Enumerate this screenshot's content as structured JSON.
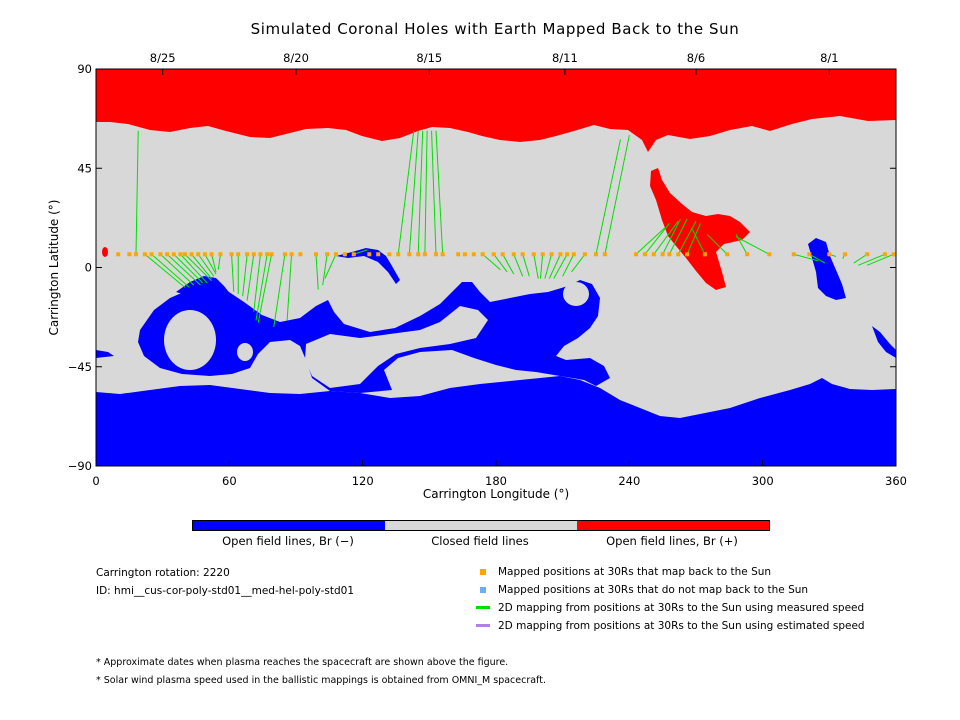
{
  "title": "Simulated Coronal Holes with Earth Mapped Back to the Sun",
  "colors": {
    "open_negative": "#0000ff",
    "closed": "#d8d8d8",
    "open_positive": "#ff0000",
    "mapped_back": "#ffa500",
    "not_mapped_back": "#6ab0f0",
    "measured_speed": "#00e000",
    "estimated_speed": "#b07fe8"
  },
  "chart_data": {
    "type": "map",
    "xlabel": "Carrington Longitude (°)",
    "ylabel": "Carrington Latitude (°)",
    "xlim": [
      0,
      360
    ],
    "ylim": [
      -90,
      90
    ],
    "x_ticks": [
      {
        "value": 0,
        "label": "0"
      },
      {
        "value": 60,
        "label": "60"
      },
      {
        "value": 120,
        "label": "120"
      },
      {
        "value": 180,
        "label": "180"
      },
      {
        "value": 240,
        "label": "240"
      },
      {
        "value": 300,
        "label": "300"
      },
      {
        "value": 360,
        "label": "360"
      }
    ],
    "y_ticks": [
      {
        "value": 90,
        "label": "90"
      },
      {
        "value": 45,
        "label": "45"
      },
      {
        "value": 0,
        "label": "0"
      },
      {
        "value": -45,
        "label": "−45"
      },
      {
        "value": -90,
        "label": "−90"
      }
    ],
    "top_ticks": [
      {
        "value": 30,
        "label": "8/25"
      },
      {
        "value": 90,
        "label": "8/20"
      },
      {
        "value": 150,
        "label": "8/15"
      },
      {
        "value": 211,
        "label": "8/11"
      },
      {
        "value": 270,
        "label": "8/6"
      },
      {
        "value": 330,
        "label": "8/1"
      }
    ],
    "mapped_points": [
      [
        10,
        6
      ],
      [
        15,
        6
      ],
      [
        18,
        6
      ],
      [
        22,
        6
      ],
      [
        25,
        6
      ],
      [
        29,
        6
      ],
      [
        32,
        6
      ],
      [
        35,
        6
      ],
      [
        38,
        6
      ],
      [
        40,
        6
      ],
      [
        43,
        6
      ],
      [
        46,
        6
      ],
      [
        49,
        6
      ],
      [
        52,
        6
      ],
      [
        56,
        6
      ],
      [
        61,
        6
      ],
      [
        64,
        6
      ],
      [
        68,
        6
      ],
      [
        71,
        6
      ],
      [
        74,
        6
      ],
      [
        77,
        6
      ],
      [
        79,
        6
      ],
      [
        85,
        6
      ],
      [
        88,
        6
      ],
      [
        92,
        6
      ],
      [
        99,
        6
      ],
      [
        104,
        6
      ],
      [
        108,
        6
      ],
      [
        112,
        6
      ],
      [
        116,
        6
      ],
      [
        123,
        6
      ],
      [
        127,
        6
      ],
      [
        132,
        6
      ],
      [
        136,
        6
      ],
      [
        141,
        6
      ],
      [
        145,
        6
      ],
      [
        148,
        6
      ],
      [
        153,
        6
      ],
      [
        156,
        6
      ],
      [
        163,
        6
      ],
      [
        166,
        6
      ],
      [
        170,
        6
      ],
      [
        174,
        6
      ],
      [
        179,
        6
      ],
      [
        183,
        6
      ],
      [
        188,
        6
      ],
      [
        192,
        6
      ],
      [
        197,
        6
      ],
      [
        201,
        6
      ],
      [
        205,
        6
      ],
      [
        209,
        6
      ],
      [
        212,
        6
      ],
      [
        215,
        6
      ],
      [
        220,
        6
      ],
      [
        225,
        6
      ],
      [
        229,
        6
      ],
      [
        243,
        6
      ],
      [
        247,
        6
      ],
      [
        251,
        6
      ],
      [
        255,
        6
      ],
      [
        258,
        6
      ],
      [
        262,
        6
      ],
      [
        266,
        6
      ],
      [
        274,
        6
      ],
      [
        284,
        6
      ],
      [
        293,
        6
      ],
      [
        303,
        6
      ],
      [
        314,
        6
      ],
      [
        321,
        6
      ],
      [
        330,
        6
      ],
      [
        337,
        6
      ],
      [
        347,
        6
      ],
      [
        355,
        6
      ],
      [
        359,
        6
      ]
    ],
    "links": [
      [
        18,
        6,
        19,
        62
      ],
      [
        22,
        6,
        40,
        -9
      ],
      [
        25,
        6,
        42,
        -9
      ],
      [
        29,
        6,
        44,
        -8
      ],
      [
        32,
        6,
        47,
        -8
      ],
      [
        35,
        6,
        48,
        -7
      ],
      [
        38,
        6,
        50,
        -7
      ],
      [
        40,
        6,
        52,
        -6
      ],
      [
        43,
        6,
        52,
        -5
      ],
      [
        46,
        6,
        53,
        -4
      ],
      [
        49,
        6,
        54,
        -3
      ],
      [
        52,
        6,
        54,
        -2
      ],
      [
        56,
        6,
        55,
        -1
      ],
      [
        61,
        6,
        62,
        -11
      ],
      [
        64,
        6,
        64,
        -12
      ],
      [
        68,
        6,
        66,
        -13
      ],
      [
        71,
        6,
        68,
        -15
      ],
      [
        74,
        6,
        71,
        -20
      ],
      [
        77,
        6,
        72,
        -24
      ],
      [
        79,
        6,
        73,
        -25
      ],
      [
        85,
        6,
        80,
        -27
      ],
      [
        88,
        6,
        86,
        -24
      ],
      [
        99,
        6,
        100,
        -10
      ],
      [
        104,
        6,
        102,
        -8
      ],
      [
        108,
        6,
        103,
        -5
      ],
      [
        112,
        6,
        112,
        5
      ],
      [
        116,
        6,
        122,
        8
      ],
      [
        136,
        6,
        143,
        62
      ],
      [
        141,
        6,
        145,
        62
      ],
      [
        145,
        6,
        147,
        62
      ],
      [
        148,
        6,
        149,
        62
      ],
      [
        153,
        6,
        151,
        62
      ],
      [
        156,
        6,
        153,
        62
      ],
      [
        174,
        6,
        182,
        -1
      ],
      [
        179,
        6,
        185,
        -2
      ],
      [
        183,
        6,
        188,
        -3
      ],
      [
        188,
        6,
        192,
        -4
      ],
      [
        192,
        6,
        195,
        -4
      ],
      [
        197,
        6,
        199,
        -5
      ],
      [
        201,
        6,
        200,
        -5
      ],
      [
        205,
        6,
        202,
        -5
      ],
      [
        209,
        6,
        204,
        -5
      ],
      [
        212,
        6,
        206,
        -5
      ],
      [
        215,
        6,
        210,
        -4
      ],
      [
        220,
        6,
        214,
        -2
      ],
      [
        225,
        6,
        236,
        58
      ],
      [
        229,
        6,
        240,
        60
      ],
      [
        243,
        6,
        256,
        18
      ],
      [
        247,
        6,
        258,
        20
      ],
      [
        251,
        6,
        262,
        21
      ],
      [
        255,
        6,
        263,
        22
      ],
      [
        258,
        6,
        266,
        22
      ],
      [
        262,
        6,
        270,
        21
      ],
      [
        266,
        6,
        272,
        20
      ],
      [
        274,
        6,
        268,
        18
      ],
      [
        284,
        6,
        275,
        15
      ],
      [
        293,
        6,
        288,
        15
      ],
      [
        303,
        6,
        288,
        14
      ],
      [
        314,
        6,
        325,
        3
      ],
      [
        321,
        6,
        328,
        2
      ],
      [
        330,
        6,
        333,
        5
      ],
      [
        337,
        6,
        336,
        4
      ],
      [
        347,
        6,
        341,
        2
      ],
      [
        355,
        6,
        343,
        1
      ],
      [
        359,
        6,
        347,
        1
      ]
    ],
    "info": {
      "rotation": "Carrington rotation: 2220",
      "id": "ID: hmi__cus-cor-poly-std01__med-hel-poly-std01"
    },
    "colorbar": [
      {
        "label": "Open field lines, Br (−)"
      },
      {
        "label": "Closed field lines"
      },
      {
        "label": "Open field lines, Br (+)"
      }
    ],
    "legend": [
      {
        "text": "Mapped positions at 30Rs that map back to the Sun"
      },
      {
        "text": "Mapped positions at 30Rs that do not map back to the Sun"
      },
      {
        "text": "2D mapping from positions at 30Rs to the Sun using measured speed"
      },
      {
        "text": "2D mapping from positions at 30Rs to the Sun using estimated speed"
      }
    ],
    "notes": [
      "* Approximate dates when plasma reaches the spacecraft are shown above the figure.",
      "* Solar wind plasma speed used in the ballistic mappings is obtained from OMNI_M spacecraft."
    ]
  }
}
